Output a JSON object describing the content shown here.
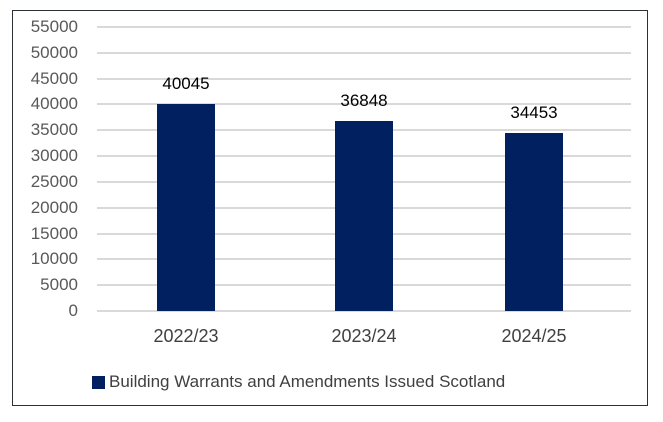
{
  "chart_data": {
    "type": "bar",
    "title": "",
    "xlabel": "",
    "ylabel": "",
    "categories": [
      "2022/23",
      "2023/24",
      "2024/25"
    ],
    "series": [
      {
        "name": "Building Warrants and Amendments Issued Scotland",
        "values": [
          40045,
          36848,
          34453
        ],
        "color": "#002060"
      }
    ],
    "data_labels": [
      "40045",
      "36848",
      "34453"
    ],
    "ylim": [
      0,
      55000
    ],
    "yticks": [
      "55000",
      "50000",
      "45000",
      "40000",
      "35000",
      "30000",
      "25000",
      "20000",
      "15000",
      "10000",
      "5000",
      "0"
    ],
    "grid": true,
    "legend_position": "bottom"
  },
  "legend": {
    "label": "Building Warrants and Amendments Issued Scotland"
  }
}
